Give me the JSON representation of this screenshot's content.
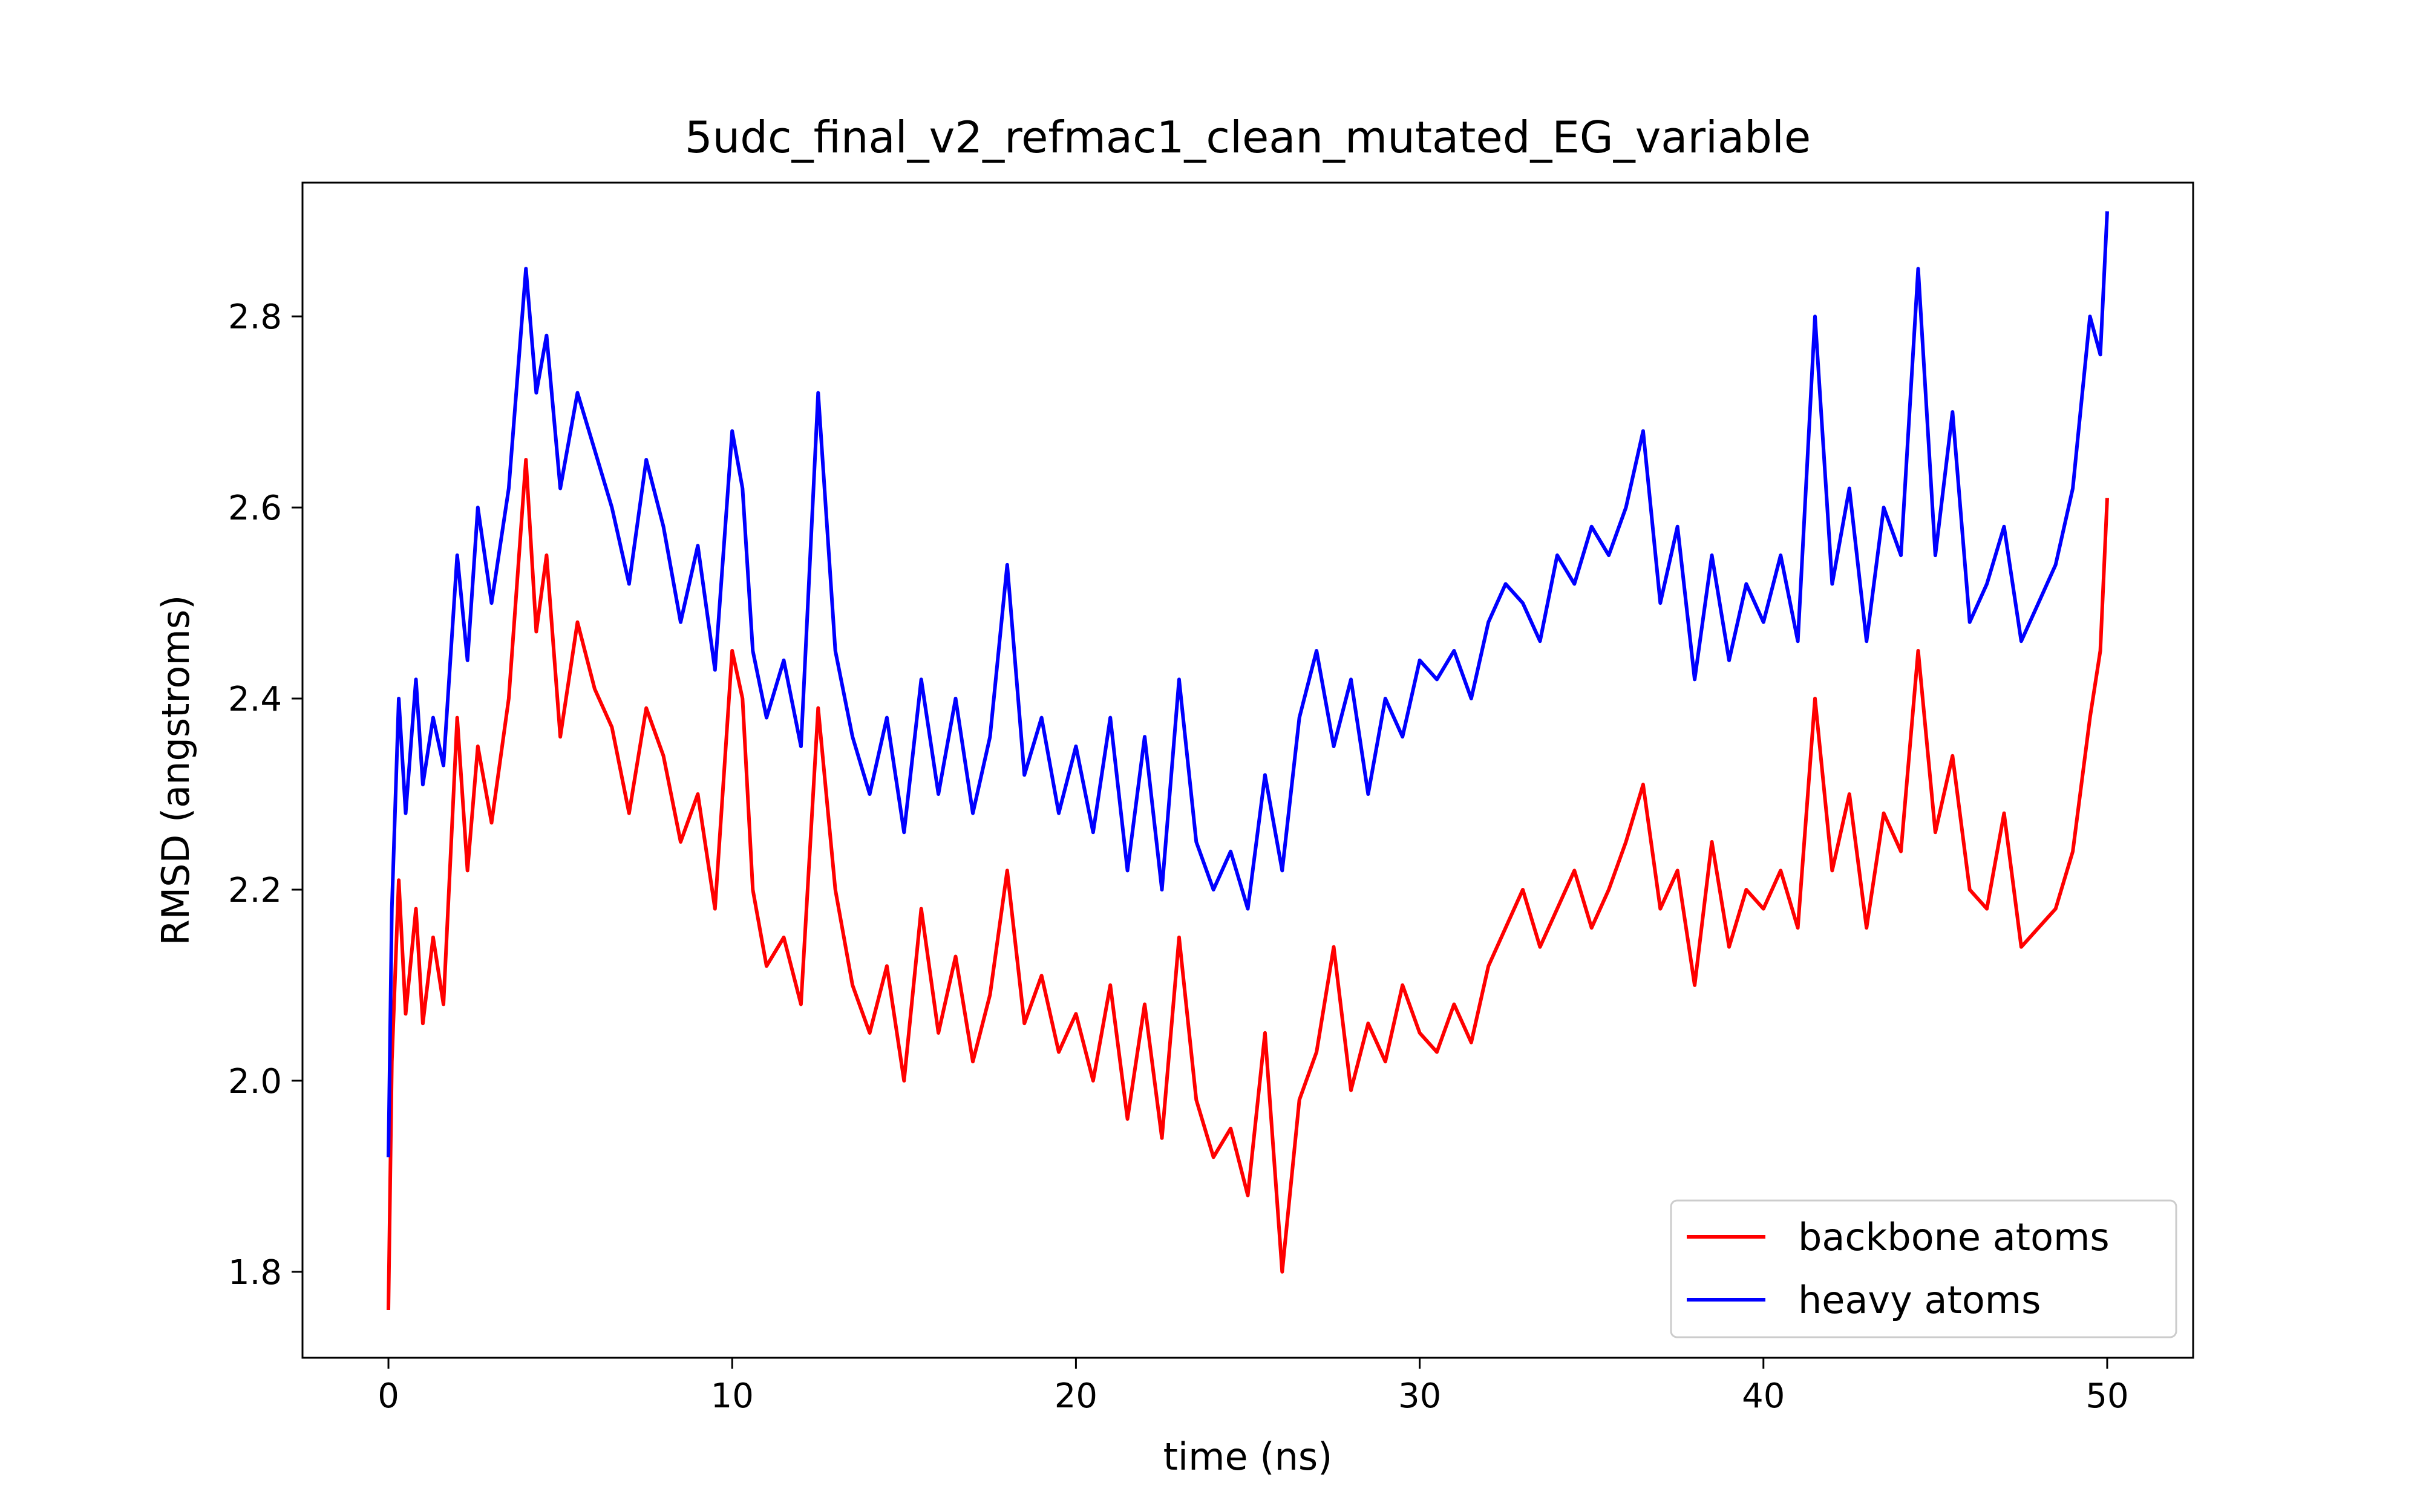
{
  "chart_data": {
    "type": "line",
    "title": "5udc_final_v2_refmac1_clean_mutated_EG_variable",
    "xlabel": "time (ns)",
    "ylabel": "RMSD (angstroms)",
    "xlim": [
      -2.5,
      52.5
    ],
    "ylim": [
      1.71,
      2.94
    ],
    "xticks": [
      0,
      10,
      20,
      30,
      40,
      50
    ],
    "yticks": [
      1.8,
      2.0,
      2.2,
      2.4,
      2.6,
      2.8
    ],
    "xtick_labels": [
      "0",
      "10",
      "20",
      "30",
      "40",
      "50"
    ],
    "ytick_labels": [
      "1.8",
      "2.0",
      "2.2",
      "2.4",
      "2.6",
      "2.8"
    ],
    "grid": false,
    "legend_position": "lower-right",
    "series": [
      {
        "name": "backbone atoms",
        "color": "#ff0000",
        "x": [
          0,
          0.1,
          0.3,
          0.5,
          0.8,
          1.0,
          1.3,
          1.6,
          2.0,
          2.3,
          2.6,
          3.0,
          3.5,
          4.0,
          4.3,
          4.6,
          5.0,
          5.5,
          6.0,
          6.5,
          7.0,
          7.5,
          8.0,
          8.5,
          9.0,
          9.5,
          10.0,
          10.3,
          10.6,
          11.0,
          11.5,
          12.0,
          12.5,
          13.0,
          13.5,
          14.0,
          14.5,
          15.0,
          15.5,
          16.0,
          16.5,
          17.0,
          17.5,
          18.0,
          18.5,
          19.0,
          19.5,
          20.0,
          20.5,
          21.0,
          21.5,
          22.0,
          22.5,
          23.0,
          23.5,
          24.0,
          24.5,
          25.0,
          25.5,
          26.0,
          26.5,
          27.0,
          27.5,
          28.0,
          28.5,
          29.0,
          29.5,
          30.0,
          30.5,
          31.0,
          31.5,
          32.0,
          32.5,
          33.0,
          33.5,
          34.0,
          34.5,
          35.0,
          35.5,
          36.0,
          36.5,
          37.0,
          37.5,
          38.0,
          38.5,
          39.0,
          39.5,
          40.0,
          40.5,
          41.0,
          41.5,
          42.0,
          42.5,
          43.0,
          43.5,
          44.0,
          44.5,
          45.0,
          45.5,
          46.0,
          46.5,
          47.0,
          47.5,
          48.0,
          48.5,
          49.0,
          49.5,
          49.8,
          50.0
        ],
        "values": [
          1.76,
          2.02,
          2.21,
          2.07,
          2.18,
          2.06,
          2.15,
          2.08,
          2.38,
          2.22,
          2.35,
          2.27,
          2.4,
          2.65,
          2.47,
          2.55,
          2.36,
          2.48,
          2.41,
          2.37,
          2.28,
          2.39,
          2.34,
          2.25,
          2.3,
          2.18,
          2.45,
          2.4,
          2.2,
          2.12,
          2.15,
          2.08,
          2.39,
          2.2,
          2.1,
          2.05,
          2.12,
          2.0,
          2.18,
          2.05,
          2.13,
          2.02,
          2.09,
          2.22,
          2.06,
          2.11,
          2.03,
          2.07,
          2.0,
          2.1,
          1.96,
          2.08,
          1.94,
          2.15,
          1.98,
          1.92,
          1.95,
          1.88,
          2.05,
          1.8,
          1.98,
          2.03,
          2.14,
          1.99,
          2.06,
          2.02,
          2.1,
          2.05,
          2.03,
          2.08,
          2.04,
          2.12,
          2.16,
          2.2,
          2.14,
          2.18,
          2.22,
          2.16,
          2.2,
          2.25,
          2.31,
          2.18,
          2.22,
          2.1,
          2.25,
          2.14,
          2.2,
          2.18,
          2.22,
          2.16,
          2.4,
          2.22,
          2.3,
          2.16,
          2.28,
          2.24,
          2.45,
          2.26,
          2.34,
          2.2,
          2.18,
          2.28,
          2.14,
          2.16,
          2.18,
          2.24,
          2.38,
          2.45,
          2.61
        ]
      },
      {
        "name": "heavy atoms",
        "color": "#0000ff",
        "x": [
          0,
          0.1,
          0.3,
          0.5,
          0.8,
          1.0,
          1.3,
          1.6,
          2.0,
          2.3,
          2.6,
          3.0,
          3.5,
          4.0,
          4.3,
          4.6,
          5.0,
          5.5,
          6.0,
          6.5,
          7.0,
          7.5,
          8.0,
          8.5,
          9.0,
          9.5,
          10.0,
          10.3,
          10.6,
          11.0,
          11.5,
          12.0,
          12.5,
          13.0,
          13.5,
          14.0,
          14.5,
          15.0,
          15.5,
          16.0,
          16.5,
          17.0,
          17.5,
          18.0,
          18.5,
          19.0,
          19.5,
          20.0,
          20.5,
          21.0,
          21.5,
          22.0,
          22.5,
          23.0,
          23.5,
          24.0,
          24.5,
          25.0,
          25.5,
          26.0,
          26.5,
          27.0,
          27.5,
          28.0,
          28.5,
          29.0,
          29.5,
          30.0,
          30.5,
          31.0,
          31.5,
          32.0,
          32.5,
          33.0,
          33.5,
          34.0,
          34.5,
          35.0,
          35.5,
          36.0,
          36.5,
          37.0,
          37.5,
          38.0,
          38.5,
          39.0,
          39.5,
          40.0,
          40.5,
          41.0,
          41.5,
          42.0,
          42.5,
          43.0,
          43.5,
          44.0,
          44.5,
          45.0,
          45.5,
          46.0,
          46.5,
          47.0,
          47.5,
          48.0,
          48.5,
          49.0,
          49.5,
          49.8,
          50.0
        ],
        "values": [
          1.92,
          2.18,
          2.4,
          2.28,
          2.42,
          2.31,
          2.38,
          2.33,
          2.55,
          2.44,
          2.6,
          2.5,
          2.62,
          2.85,
          2.72,
          2.78,
          2.62,
          2.72,
          2.66,
          2.6,
          2.52,
          2.65,
          2.58,
          2.48,
          2.56,
          2.43,
          2.68,
          2.62,
          2.45,
          2.38,
          2.44,
          2.35,
          2.72,
          2.45,
          2.36,
          2.3,
          2.38,
          2.26,
          2.42,
          2.3,
          2.4,
          2.28,
          2.36,
          2.54,
          2.32,
          2.38,
          2.28,
          2.35,
          2.26,
          2.38,
          2.22,
          2.36,
          2.2,
          2.42,
          2.25,
          2.2,
          2.24,
          2.18,
          2.32,
          2.22,
          2.38,
          2.45,
          2.35,
          2.42,
          2.3,
          2.4,
          2.36,
          2.44,
          2.42,
          2.45,
          2.4,
          2.48,
          2.52,
          2.5,
          2.46,
          2.55,
          2.52,
          2.58,
          2.55,
          2.6,
          2.68,
          2.5,
          2.58,
          2.42,
          2.55,
          2.44,
          2.52,
          2.48,
          2.55,
          2.46,
          2.8,
          2.52,
          2.62,
          2.46,
          2.6,
          2.55,
          2.85,
          2.55,
          2.7,
          2.48,
          2.52,
          2.58,
          2.46,
          2.5,
          2.54,
          2.62,
          2.8,
          2.76,
          2.91
        ]
      }
    ]
  }
}
